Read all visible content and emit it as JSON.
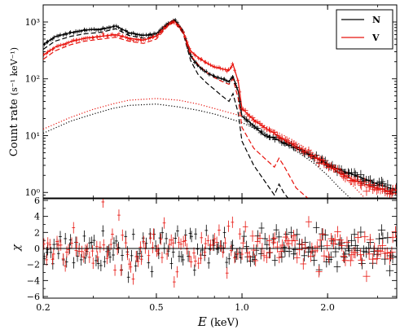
{
  "chart_data": [
    {
      "type": "line",
      "panel": "top",
      "xscale": "log",
      "yscale": "log",
      "xlim": [
        0.2,
        3.5
      ],
      "ylim": [
        0.8,
        2000
      ],
      "xlabel_main": "E",
      "xlabel_unit": " (keV)",
      "ylabel_main": "Count rate ",
      "ylabel_unit": "(s⁻¹ keV⁻¹)",
      "xticks": [
        0.2,
        0.5,
        1.0,
        2.0
      ],
      "xtick_labels": [
        "0.2",
        "0.5",
        "1.0",
        "2.0"
      ],
      "yticks": [
        1,
        10,
        100,
        1000
      ],
      "ytick_labels": [
        "10⁰",
        "10¹",
        "10²",
        "10³"
      ],
      "legend_position": "top-right",
      "grid": false,
      "series": [
        {
          "name": "N",
          "color": "#000000",
          "style": "solid",
          "role": "total model",
          "x": [
            0.2,
            0.22,
            0.25,
            0.28,
            0.32,
            0.36,
            0.4,
            0.45,
            0.5,
            0.55,
            0.58,
            0.62,
            0.66,
            0.7,
            0.75,
            0.8,
            0.85,
            0.9,
            0.93,
            0.97,
            1.0,
            1.1,
            1.2,
            1.3,
            1.4,
            1.5,
            1.6,
            1.7,
            1.8,
            2.0,
            2.2,
            2.5,
            2.8,
            3.0,
            3.5
          ],
          "y": [
            400,
            550,
            650,
            720,
            750,
            850,
            650,
            580,
            620,
            950,
            1100,
            700,
            250,
            170,
            130,
            110,
            100,
            90,
            110,
            60,
            22,
            15,
            10,
            9,
            7.5,
            6.5,
            5.5,
            4.8,
            4.2,
            3.2,
            2.5,
            2.0,
            1.6,
            1.4,
            1.1
          ]
        },
        {
          "name": "N thermal component",
          "color": "#000000",
          "style": "dashed",
          "x": [
            0.2,
            0.22,
            0.25,
            0.28,
            0.32,
            0.36,
            0.4,
            0.45,
            0.5,
            0.55,
            0.58,
            0.62,
            0.66,
            0.7,
            0.75,
            0.8,
            0.85,
            0.9,
            0.93,
            0.97,
            1.0,
            1.1,
            1.2,
            1.3,
            1.35,
            1.4,
            1.45
          ],
          "y": [
            330,
            460,
            560,
            620,
            660,
            760,
            580,
            520,
            560,
            880,
            1050,
            650,
            210,
            120,
            85,
            65,
            50,
            40,
            55,
            25,
            8,
            3,
            1.6,
            0.9,
            1.4,
            1.0,
            0.8
          ]
        },
        {
          "name": "N power-law component",
          "color": "#000000",
          "style": "dotted",
          "x": [
            0.2,
            0.25,
            0.3,
            0.35,
            0.4,
            0.5,
            0.6,
            0.7,
            0.8,
            1.0,
            1.2,
            1.5,
            1.8,
            2.0,
            2.2,
            2.4
          ],
          "y": [
            11,
            18,
            24,
            30,
            34,
            36,
            32,
            28,
            24,
            17,
            11,
            6,
            3.2,
            2.0,
            1.2,
            0.8
          ]
        },
        {
          "name": "V",
          "color": "#e8140e",
          "style": "solid",
          "role": "total model",
          "x": [
            0.2,
            0.22,
            0.25,
            0.28,
            0.32,
            0.36,
            0.4,
            0.45,
            0.5,
            0.55,
            0.58,
            0.62,
            0.66,
            0.7,
            0.75,
            0.8,
            0.85,
            0.9,
            0.93,
            0.97,
            1.0,
            1.1,
            1.2,
            1.3,
            1.4,
            1.5,
            1.6,
            1.7,
            1.8,
            2.0,
            2.2,
            2.5,
            2.8,
            3.0,
            3.5
          ],
          "y": [
            260,
            360,
            450,
            520,
            560,
            600,
            520,
            480,
            560,
            900,
            1050,
            680,
            310,
            240,
            190,
            160,
            150,
            140,
            180,
            90,
            30,
            19,
            14,
            11,
            8.5,
            7,
            6,
            5,
            4.2,
            3.0,
            2.2,
            1.6,
            1.3,
            1.2,
            0.95
          ]
        },
        {
          "name": "V thermal component",
          "color": "#e8140e",
          "style": "dashed",
          "x": [
            0.2,
            0.22,
            0.25,
            0.28,
            0.32,
            0.36,
            0.4,
            0.45,
            0.5,
            0.55,
            0.58,
            0.62,
            0.66,
            0.7,
            0.75,
            0.8,
            0.85,
            0.9,
            0.93,
            0.97,
            1.0,
            1.1,
            1.2,
            1.3,
            1.35,
            1.4,
            1.45,
            1.55,
            1.7
          ],
          "y": [
            220,
            310,
            400,
            460,
            500,
            540,
            460,
            420,
            500,
            860,
            1000,
            630,
            260,
            180,
            130,
            105,
            90,
            80,
            100,
            45,
            14,
            6,
            4,
            2.8,
            4.0,
            3.0,
            2.2,
            1.2,
            0.8
          ]
        },
        {
          "name": "V power-law component",
          "color": "#e8140e",
          "style": "dotted",
          "x": [
            0.2,
            0.25,
            0.3,
            0.35,
            0.4,
            0.5,
            0.6,
            0.7,
            0.8,
            1.0,
            1.2,
            1.5,
            1.8,
            2.0,
            2.2,
            2.5,
            2.7
          ],
          "y": [
            13,
            21,
            29,
            36,
            42,
            45,
            42,
            36,
            30,
            22,
            15,
            8.5,
            4.8,
            3.2,
            2.2,
            1.2,
            0.8
          ]
        }
      ]
    },
    {
      "type": "scatter",
      "panel": "bottom",
      "xscale": "log",
      "xlim": [
        0.2,
        3.5
      ],
      "ylim": [
        -6.2,
        6.2
      ],
      "ylabel": "χ",
      "yticks": [
        -6,
        -4,
        -2,
        0,
        2,
        4,
        6
      ],
      "ytick_labels": [
        "−6",
        "−4",
        "−2",
        "0",
        "2",
        "4",
        "6"
      ],
      "reference_line": 0,
      "series": [
        {
          "name": "N",
          "color": "#000000",
          "style": "crosses with error bars",
          "typical_spread": 1.5
        },
        {
          "name": "V",
          "color": "#e8140e",
          "style": "crosses with error bars",
          "typical_spread": 1.5
        }
      ]
    }
  ]
}
